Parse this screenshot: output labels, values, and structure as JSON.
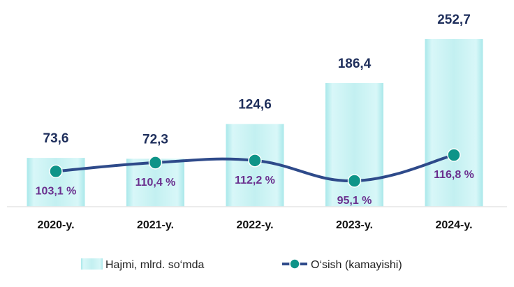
{
  "chart_data": {
    "type": "bar",
    "categories": [
      "2020-y.",
      "2021-y.",
      "2022-y.",
      "2023-y.",
      "2024-y."
    ],
    "series": [
      {
        "name": "Hajmi, mlrd. so‘mda",
        "kind": "bar",
        "values": [
          73.6,
          72.3,
          124.6,
          186.4,
          252.7
        ],
        "labels": [
          "73,6",
          "72,3",
          "124,6",
          "186,4",
          "252,7"
        ],
        "color": "#c5f1f2"
      },
      {
        "name": "O‘sish (kamayishi)",
        "kind": "line",
        "values": [
          103.1,
          110.4,
          112.2,
          95.1,
          116.8
        ],
        "labels": [
          "103,1 %",
          "110,4 %",
          "112,2 %",
          "95,1 %",
          "116,8 %"
        ],
        "color": "#2e4a8a",
        "marker_color": "#0e9488"
      }
    ],
    "ylim": [
      0,
      252.7
    ],
    "secondary_ylim": [
      90,
      125
    ],
    "grid": false,
    "legend": "bottom"
  }
}
